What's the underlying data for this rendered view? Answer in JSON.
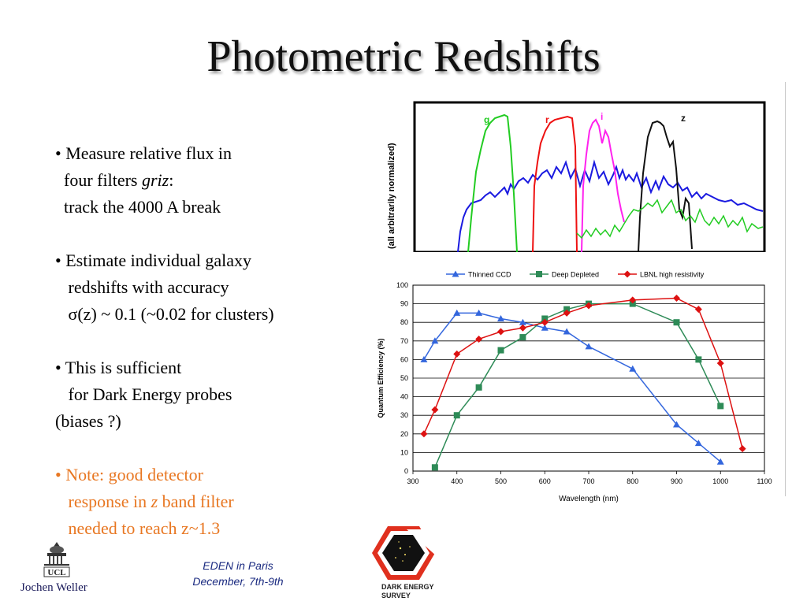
{
  "slide": {
    "title": "Photometric Redshifts",
    "bullets": {
      "b1_l1": "• Measure relative flux in",
      "b1_l2_pre": "  four filters ",
      "b1_l2_em": "griz",
      "b1_l2_post": ":",
      "b1_l3": "  track the 4000 A break",
      "b2_l1": "• Estimate individual galaxy",
      "b2_l2": "   redshifts with accuracy",
      "b2_l3": "   σ(z) ~ 0.1 (~0.02 for clusters)",
      "b3_l1": "• This is sufficient",
      "b3_l2": "   for Dark Energy probes",
      "b3_l3": "(biases ?)",
      "b4_l1": "• Note: good detector",
      "b4_l2_pre": "   response in ",
      "b4_l2_em": "z",
      "b4_l2_post": " band filter",
      "b4_l3": "   needed to reach z~1.3"
    },
    "footer": {
      "event_line1": "EDEN in Paris",
      "event_line2": "December, 7th-9th",
      "author": "Jochen Weller",
      "ucl_text": "UCL",
      "des_line1": "DARK ENERGY",
      "des_line2": "SURVEY"
    },
    "colors": {
      "note": "#e87722",
      "footer_text": "#1a2a80"
    }
  },
  "filter_panel": {
    "ylabel": "(all arbitrarily normalized)",
    "band_labels": [
      "g",
      "r",
      "i",
      "z"
    ],
    "colors": {
      "g": "#22cc22",
      "r": "#ee1111",
      "i": "#ff22ee",
      "z": "#111111",
      "spectrum": "#1a1ae0"
    }
  },
  "chart_data": {
    "type": "line",
    "xlabel": "Wavelength (nm)",
    "ylabel": "Quantum Efficiency (%)",
    "xlim": [
      300,
      1100
    ],
    "ylim": [
      0,
      100
    ],
    "x_ticks": [
      300,
      400,
      500,
      600,
      700,
      800,
      900,
      1000,
      1100
    ],
    "y_ticks": [
      0,
      10,
      20,
      30,
      40,
      50,
      60,
      70,
      80,
      90,
      100
    ],
    "grid": "horizontal",
    "legend_position": "top",
    "series": [
      {
        "name": "Thinned CCD",
        "color": "#3366dd",
        "marker": "triangle",
        "x": [
          325,
          350,
          400,
          450,
          500,
          550,
          600,
          650,
          700,
          800,
          900,
          950,
          1000
        ],
        "y": [
          60,
          70,
          85,
          85,
          82,
          80,
          77,
          75,
          67,
          55,
          25,
          15,
          5
        ]
      },
      {
        "name": "Deep Depleted",
        "color": "#2e8b57",
        "marker": "square",
        "x": [
          350,
          400,
          450,
          500,
          550,
          600,
          650,
          700,
          800,
          900,
          950,
          1000
        ],
        "y": [
          2,
          30,
          45,
          65,
          72,
          82,
          87,
          90,
          90,
          80,
          60,
          35
        ]
      },
      {
        "name": "LBNL high resistivity",
        "color": "#dd1111",
        "marker": "diamond",
        "x": [
          325,
          350,
          400,
          450,
          500,
          550,
          600,
          650,
          700,
          800,
          900,
          950,
          1000,
          1050
        ],
        "y": [
          20,
          33,
          63,
          71,
          75,
          77,
          80,
          85,
          89,
          92,
          93,
          87,
          58,
          12
        ]
      }
    ]
  }
}
